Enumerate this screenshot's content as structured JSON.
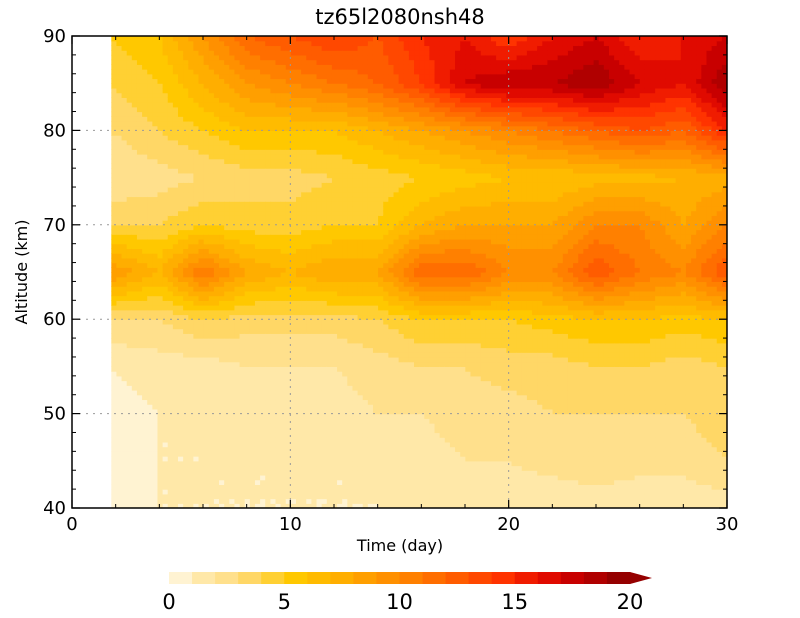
{
  "chart_data": {
    "type": "heatmap",
    "title": "tz65l2080nsh48",
    "xlabel": "Time (day)",
    "ylabel": "Altitude (km)",
    "xlim": [
      0,
      30
    ],
    "ylim": [
      40,
      90
    ],
    "x_ticks": [
      "0",
      "10",
      "20",
      "30"
    ],
    "x_tick_values": [
      0,
      10,
      20,
      30
    ],
    "y_ticks": [
      "40",
      "50",
      "60",
      "70",
      "80",
      "90"
    ],
    "y_tick_values": [
      40,
      50,
      60,
      70,
      80,
      90
    ],
    "grid": "dotted",
    "data_start_day": 1.8,
    "x": [
      1.8,
      4,
      6,
      8,
      10,
      12,
      14,
      16,
      18,
      20,
      22,
      24,
      26,
      28,
      30
    ],
    "y": [
      40,
      45,
      50,
      55,
      60,
      65,
      70,
      75,
      80,
      85,
      90
    ],
    "z": [
      [
        0.5,
        1.0,
        1.0,
        1.0,
        1.0,
        1.0,
        1.0,
        1.0,
        1.0,
        1.0,
        1.0,
        1.0,
        1.0,
        1.0,
        1.5
      ],
      [
        0.5,
        1.0,
        1.0,
        1.0,
        1.0,
        1.0,
        1.0,
        1.5,
        2.0,
        2.0,
        2.5,
        3.0,
        2.5,
        2.5,
        3.0
      ],
      [
        0.5,
        1.0,
        1.0,
        1.5,
        1.5,
        1.5,
        2.0,
        2.0,
        2.5,
        2.5,
        3.0,
        3.0,
        3.0,
        3.0,
        3.5
      ],
      [
        1.0,
        1.5,
        1.5,
        2.0,
        2.0,
        2.0,
        2.5,
        3.0,
        3.0,
        3.5,
        3.5,
        4.0,
        4.0,
        3.5,
        4.0
      ],
      [
        3.0,
        3.0,
        4.0,
        3.5,
        3.5,
        3.5,
        4.0,
        5.0,
        5.0,
        5.0,
        5.5,
        6.0,
        6.0,
        5.5,
        6.0
      ],
      [
        9.0,
        7.0,
        11.0,
        8.0,
        7.0,
        8.0,
        8.0,
        12.0,
        12.0,
        10.0,
        10.0,
        13.0,
        11.0,
        10.0,
        13.0
      ],
      [
        4.0,
        4.0,
        5.0,
        4.5,
        4.5,
        5.0,
        5.0,
        7.0,
        8.0,
        8.0,
        8.0,
        10.0,
        10.0,
        8.0,
        10.0
      ],
      [
        2.0,
        2.5,
        3.0,
        3.5,
        3.5,
        4.0,
        4.5,
        5.0,
        5.5,
        6.0,
        6.0,
        6.5,
        6.5,
        7.0,
        7.5
      ],
      [
        3.0,
        4.0,
        5.0,
        6.0,
        6.0,
        6.0,
        7.0,
        8.0,
        9.0,
        10.0,
        11.0,
        12.0,
        13.0,
        12.0,
        15.0
      ],
      [
        4.0,
        5.0,
        7.0,
        9.0,
        10.0,
        11.0,
        12.0,
        14.0,
        17.0,
        18.0,
        18.0,
        19.0,
        17.0,
        16.0,
        19.0
      ],
      [
        5.0,
        6.0,
        9.0,
        12.0,
        13.0,
        14.0,
        13.0,
        15.0,
        16.0,
        14.0,
        16.0,
        17.0,
        15.0,
        16.0,
        17.0
      ]
    ],
    "colorbar": {
      "levels": [
        0,
        1,
        2,
        3,
        4,
        5,
        6,
        7,
        8,
        9,
        10,
        11,
        12,
        13,
        14,
        15,
        16,
        17,
        18,
        19,
        20
      ],
      "tick_labels": [
        "0",
        "5",
        "10",
        "15",
        "20"
      ],
      "tick_values": [
        0,
        5,
        10,
        15,
        20
      ],
      "colors": [
        "#fff3d2",
        "#ffe8a8",
        "#ffe08c",
        "#ffd766",
        "#ffd033",
        "#ffc800",
        "#ffbb00",
        "#ffae00",
        "#ff9f00",
        "#ff9000",
        "#ff8000",
        "#ff6e00",
        "#ff5c00",
        "#ff4800",
        "#ff3300",
        "#f01c00",
        "#e00a00",
        "#c80000",
        "#b00000",
        "#950000"
      ],
      "extend": "max"
    }
  }
}
